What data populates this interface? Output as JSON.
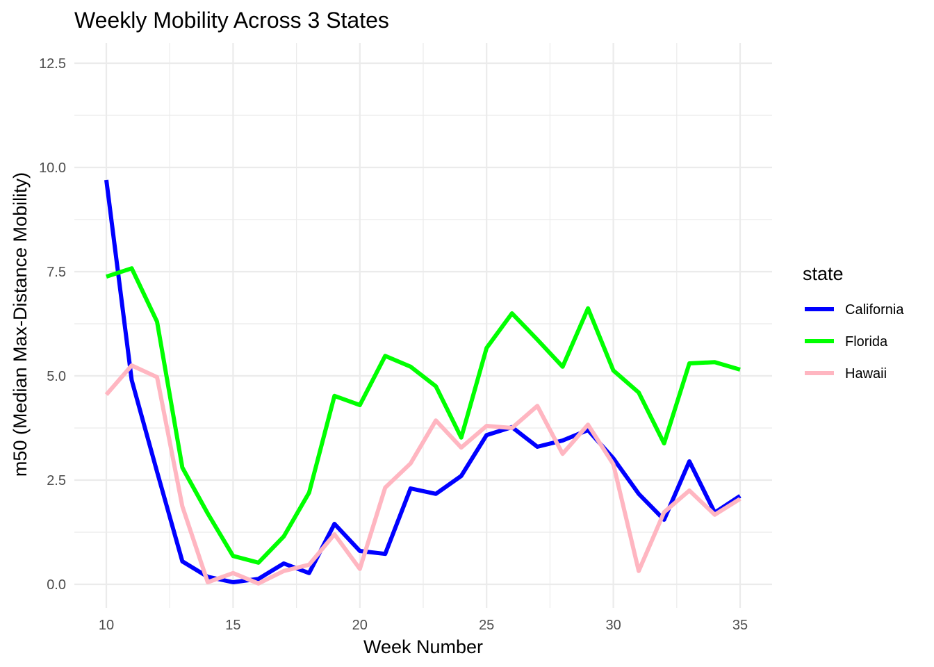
{
  "chart_data": {
    "type": "line",
    "title": "Weekly Mobility Across 3 States",
    "xlabel": "Week Number",
    "ylabel": "m50 (Median Max-Distance Mobility)",
    "xlim": [
      10,
      35
    ],
    "ylim": [
      0,
      12.5
    ],
    "x_ticks": [
      "10",
      "15",
      "20",
      "25",
      "30",
      "35"
    ],
    "y_ticks": [
      "0.0",
      "2.5",
      "5.0",
      "7.5",
      "10.0",
      "12.5"
    ],
    "grid": true,
    "legend": {
      "title": "state",
      "position": "right"
    },
    "x": [
      10,
      11,
      12,
      13,
      14,
      15,
      16,
      17,
      18,
      19,
      20,
      21,
      22,
      23,
      24,
      25,
      26,
      27,
      28,
      29,
      30,
      31,
      32,
      33,
      34,
      35
    ],
    "series": [
      {
        "name": "California",
        "color": "#0000ff",
        "values": [
          9.7,
          4.9,
          2.7,
          0.55,
          0.18,
          0.05,
          0.13,
          0.5,
          0.27,
          1.45,
          0.8,
          0.73,
          2.3,
          2.17,
          2.6,
          3.58,
          3.77,
          3.3,
          3.45,
          3.7,
          3.02,
          2.17,
          1.55,
          2.95,
          1.72,
          2.12
        ]
      },
      {
        "name": "Florida",
        "color": "#00ff00",
        "values": [
          7.38,
          7.58,
          6.3,
          2.8,
          1.7,
          0.68,
          0.52,
          1.15,
          2.2,
          4.52,
          4.3,
          5.48,
          5.22,
          4.75,
          3.52,
          5.67,
          6.5,
          5.87,
          5.22,
          6.62,
          5.13,
          4.6,
          3.38,
          5.3,
          5.33,
          5.15
        ]
      },
      {
        "name": "Hawaii",
        "color": "#ffb6c1",
        "values": [
          4.55,
          5.25,
          4.97,
          1.87,
          0.05,
          0.27,
          0.02,
          0.32,
          0.47,
          1.2,
          0.37,
          2.32,
          2.9,
          3.93,
          3.28,
          3.8,
          3.75,
          4.28,
          3.13,
          3.83,
          2.88,
          0.32,
          1.73,
          2.25,
          1.67,
          2.05
        ]
      }
    ]
  }
}
